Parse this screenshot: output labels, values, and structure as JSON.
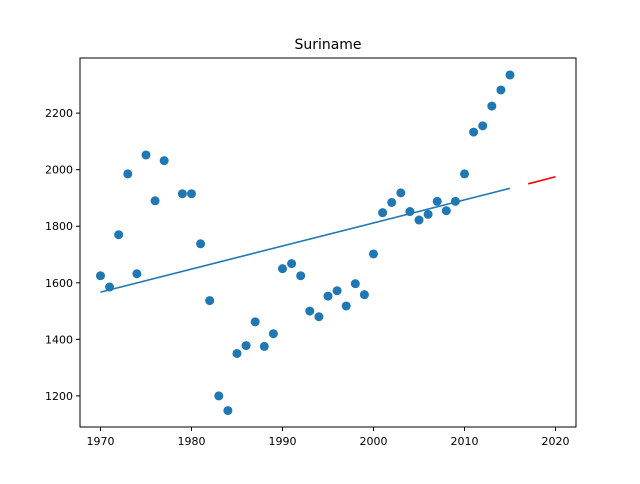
{
  "chart_data": {
    "type": "scatter",
    "title": "Suriname",
    "xlabel": "",
    "ylabel": "",
    "xlim": [
      1967.75,
      2022.25
    ],
    "ylim": [
      1090,
      2395
    ],
    "x_ticks": [
      1970,
      1980,
      1990,
      2000,
      2010,
      2020
    ],
    "y_ticks": [
      1200,
      1400,
      1600,
      1800,
      2000,
      2200
    ],
    "grid": false,
    "legend": "none",
    "colors": {
      "points": "#1f77b4",
      "trend": "#1f77b4",
      "forecast": "#ff0000"
    },
    "series": [
      {
        "kind": "scatter",
        "x": [
          1970,
          1971,
          1972,
          1973,
          1974,
          1975,
          1976,
          1977,
          1979,
          1980,
          1981,
          1982,
          1983,
          1984,
          1985,
          1986,
          1987,
          1988,
          1989,
          1990,
          1991,
          1992,
          1993,
          1994,
          1995,
          1996,
          1997,
          1998,
          1999,
          2000,
          2001,
          2002,
          2003,
          2004,
          2005,
          2006,
          2007,
          2008,
          2009,
          2010,
          2011,
          2012,
          2013,
          2014,
          2015
        ],
        "y": [
          1625,
          1585,
          1770,
          1985,
          1632,
          2052,
          1890,
          2032,
          1915,
          1915,
          1738,
          1537,
          1200,
          1148,
          1350,
          1378,
          1462,
          1375,
          1420,
          1650,
          1668,
          1625,
          1500,
          1480,
          1553,
          1572,
          1518,
          1597,
          1558,
          1702,
          1848,
          1884,
          1918,
          1852,
          1822,
          1842,
          1888,
          1855,
          1888,
          1985,
          2133,
          2155,
          2225,
          2282,
          2335
        ]
      },
      {
        "kind": "line",
        "x": [
          1970,
          2015
        ],
        "y": [
          1567,
          1934
        ]
      },
      {
        "kind": "line",
        "x": [
          2017,
          2020
        ],
        "y": [
          1950,
          1975
        ]
      }
    ]
  }
}
